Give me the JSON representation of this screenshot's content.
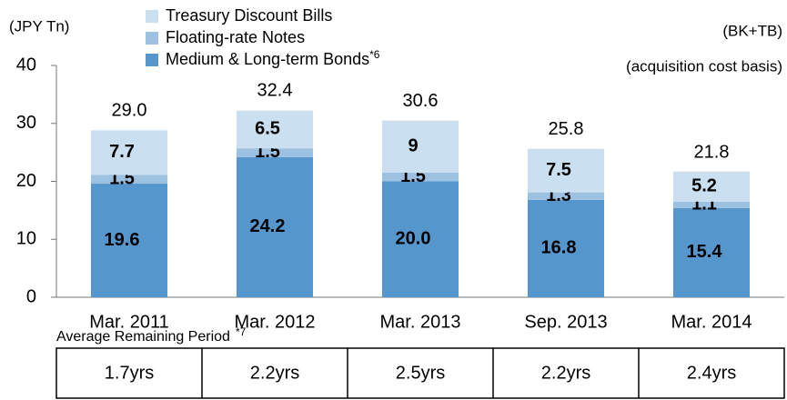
{
  "chart_data": {
    "type": "stacked_bar",
    "unit_label": "(JPY Tn)",
    "scope_label": "(BK+TB)",
    "basis_label": "(acquisition cost basis)",
    "categories": [
      "Mar. 2011",
      "Mar. 2012",
      "Mar. 2013",
      "Sep. 2013",
      "Mar. 2014"
    ],
    "series": [
      {
        "name": "Medium & Long-term Bonds",
        "name_note": "*6",
        "color": "#5597cd",
        "label_color": "#ffffff",
        "values": [
          19.6,
          24.2,
          20.0,
          16.8,
          15.4
        ],
        "value_labels": [
          "19.6",
          "24.2",
          "20.0",
          "16.8",
          "15.4"
        ]
      },
      {
        "name": "Floating-rate Notes",
        "color": "#9dc1e0",
        "label_color": "#ffffff",
        "values": [
          1.5,
          1.5,
          1.5,
          1.3,
          1.1
        ]
      },
      {
        "name": "Treasury Discount Bills",
        "color": "#cadff0",
        "label_color": "#404040",
        "values": [
          7.7,
          6.5,
          9.0,
          7.5,
          5.2
        ]
      }
    ],
    "totals": {
      "values": [
        29.0,
        32.4,
        30.6,
        25.8,
        21.8
      ],
      "value_labels": [
        "29.0",
        "32.4",
        "30.6",
        "25.8",
        "21.8"
      ]
    },
    "ylim": [
      0,
      40
    ],
    "yticks": [
      0,
      10,
      20,
      30,
      40
    ],
    "grid": false,
    "remaining_period": {
      "label": "Average Remaining Period",
      "note": "*7",
      "values": [
        "1.7yrs",
        "2.2yrs",
        "2.5yrs",
        "2.2yrs",
        "2.4yrs"
      ]
    }
  }
}
